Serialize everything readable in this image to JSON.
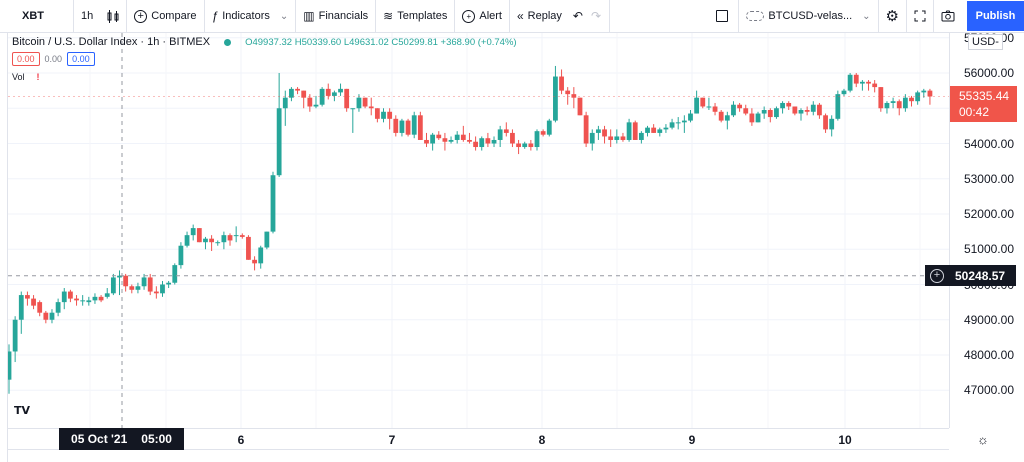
{
  "toolbar": {
    "symbol": "XBT",
    "interval": "1h",
    "chart_type_icon": "candles-icon",
    "compare": "Compare",
    "indicators": "Indicators",
    "financials": "Financials",
    "templates": "Templates",
    "alert": "Alert",
    "replay": "Replay",
    "layout_name": "BTCUSD-velas...",
    "publish": "Publish",
    "icons": {
      "compare": "⊕",
      "indicators": "ƒ",
      "chevron": "⌄",
      "financials": "▥",
      "templates": "≋",
      "alert": "⏰",
      "replay": "«",
      "undo": "↶",
      "redo": "↷",
      "layout_square": "☐",
      "cloud": "☁",
      "settings": "⚙",
      "fullscreen": "⛶",
      "camera": "📷"
    }
  },
  "legend": {
    "title": "Bitcoin / U.S. Dollar Index · 1h · BITMEX",
    "ohlc": "O49937.32 H50339.60 L49631.02 C50299.81 +368.90 (+0.74%)",
    "inputs": [
      "0.00",
      "0.00",
      "0.00"
    ],
    "vol_label": "Vol",
    "vol_warning": "!"
  },
  "price_scale": {
    "currency": "USD",
    "currency_label": "USD-",
    "labels": [
      "57000.00",
      "56000.00",
      "55000.00",
      "54000.00",
      "53000.00",
      "52000.00",
      "51000.00",
      "50000.00",
      "49000.00",
      "48000.00",
      "47000.00"
    ],
    "last_price": "55335.44",
    "countdown": "00:42",
    "crosshair_price": "50248.57"
  },
  "time_scale": {
    "crosshair_label_date": "05 Oct '21",
    "crosshair_label_time": "05:00",
    "labels": [
      "6",
      "7",
      "8",
      "9",
      "10"
    ]
  },
  "colors": {
    "up": "#26a69a",
    "down": "#ef5350",
    "accent": "#2962ff",
    "last_price_bg": "#f0554a",
    "crosshair_bg": "#131722"
  },
  "chart_data": {
    "type": "candlestick",
    "title": "Bitcoin / U.S. Dollar Index · 1h · BITMEX",
    "xlabel": "",
    "ylabel": "USD",
    "x_ticks": [
      "05 Oct '21 05:00",
      "6",
      "7",
      "8",
      "9",
      "10"
    ],
    "ylim": [
      46300,
      57100
    ],
    "grid": true,
    "last_price": 55335.44,
    "crosshair": {
      "time": "05 Oct '21 05:00",
      "price": 50248.57
    },
    "candles": [
      [
        47300,
        48300,
        46900,
        48100
      ],
      [
        48100,
        49100,
        47800,
        49000
      ],
      [
        49000,
        49800,
        48600,
        49700
      ],
      [
        49700,
        49800,
        49400,
        49600
      ],
      [
        49600,
        49700,
        49300,
        49400
      ],
      [
        49500,
        49550,
        49100,
        49200
      ],
      [
        49200,
        49250,
        48900,
        49000
      ],
      [
        49000,
        49300,
        48900,
        49200
      ],
      [
        49200,
        49600,
        49100,
        49500
      ],
      [
        49500,
        49900,
        49300,
        49800
      ],
      [
        49800,
        49850,
        49500,
        49600
      ],
      [
        49600,
        49700,
        49400,
        49550
      ],
      [
        49550,
        49700,
        49400,
        49550
      ],
      [
        49500,
        49650,
        49400,
        49550
      ],
      [
        49550,
        49750,
        49450,
        49650
      ],
      [
        49650,
        49700,
        49500,
        49550
      ],
      [
        49650,
        49900,
        49600,
        49750
      ],
      [
        49750,
        50300,
        49700,
        50200
      ],
      [
        50200,
        50400,
        49700,
        50250
      ],
      [
        50250,
        50300,
        49800,
        49950
      ],
      [
        49950,
        50000,
        49750,
        49850
      ],
      [
        49850,
        50050,
        49750,
        49950
      ],
      [
        49950,
        50300,
        49850,
        50200
      ],
      [
        50200,
        50300,
        49700,
        49800
      ],
      [
        49800,
        49950,
        49600,
        49750
      ],
      [
        49750,
        50100,
        49650,
        50000
      ],
      [
        50000,
        50100,
        49900,
        50050
      ],
      [
        50050,
        50600,
        50000,
        50550
      ],
      [
        50550,
        51200,
        50450,
        51100
      ],
      [
        51100,
        51500,
        51050,
        51400
      ],
      [
        51400,
        51700,
        51250,
        51600
      ],
      [
        51600,
        51600,
        51200,
        51200
      ],
      [
        51200,
        51350,
        51000,
        51300
      ],
      [
        51300,
        51400,
        50950,
        51200
      ],
      [
        51200,
        51250,
        51100,
        51200
      ],
      [
        51200,
        51500,
        51000,
        51400
      ],
      [
        51400,
        51450,
        51100,
        51250
      ],
      [
        51400,
        51650,
        51200,
        51400
      ],
      [
        51400,
        51450,
        51300,
        51350
      ],
      [
        51350,
        51400,
        50700,
        50700
      ],
      [
        50700,
        50800,
        50400,
        50600
      ],
      [
        50600,
        51100,
        50450,
        51050
      ],
      [
        51050,
        51500,
        51000,
        51500
      ],
      [
        51500,
        53200,
        51450,
        53100
      ],
      [
        53100,
        56000,
        53050,
        55000
      ],
      [
        55000,
        55500,
        54500,
        55300
      ],
      [
        55300,
        55600,
        55200,
        55550
      ],
      [
        55550,
        55600,
        55400,
        55500
      ],
      [
        55500,
        55500,
        55000,
        55300
      ],
      [
        55300,
        55400,
        54900,
        55050
      ],
      [
        55050,
        55350,
        55000,
        55100
      ],
      [
        55100,
        55600,
        55050,
        55550
      ],
      [
        55550,
        55700,
        55250,
        55350
      ],
      [
        55350,
        55500,
        55200,
        55450
      ],
      [
        55450,
        55700,
        55350,
        55550
      ],
      [
        55550,
        55550,
        54900,
        55000
      ],
      [
        55000,
        55000,
        54300,
        55000
      ],
      [
        55000,
        55400,
        54900,
        55300
      ],
      [
        55300,
        55300,
        55000,
        55050
      ],
      [
        55050,
        55300,
        54800,
        55000
      ],
      [
        55000,
        55000,
        54600,
        54700
      ],
      [
        54700,
        55000,
        54600,
        54900
      ],
      [
        54900,
        55000,
        54400,
        54700
      ],
      [
        54700,
        54800,
        54200,
        54300
      ],
      [
        54300,
        54700,
        54200,
        54650
      ],
      [
        54650,
        54700,
        54200,
        54250
      ],
      [
        54250,
        54900,
        54150,
        54800
      ],
      [
        54800,
        54900,
        54100,
        54100
      ],
      [
        54100,
        54300,
        53900,
        54000
      ],
      [
        54000,
        54300,
        53800,
        54250
      ],
      [
        54250,
        54350,
        54100,
        54150
      ],
      [
        54150,
        54300,
        53800,
        54050
      ],
      [
        54050,
        54200,
        54000,
        54100
      ],
      [
        54100,
        54350,
        54000,
        54250
      ],
      [
        54250,
        54500,
        54050,
        54100
      ],
      [
        54100,
        54300,
        54000,
        54050
      ],
      [
        54050,
        54200,
        53800,
        53900
      ],
      [
        53900,
        54200,
        53800,
        54150
      ],
      [
        54150,
        54300,
        53900,
        54000
      ],
      [
        54000,
        54200,
        53900,
        54100
      ],
      [
        54100,
        54500,
        53900,
        54400
      ],
      [
        54400,
        54600,
        54200,
        54300
      ],
      [
        54300,
        54400,
        53900,
        54000
      ],
      [
        54000,
        54100,
        53700,
        53900
      ],
      [
        53900,
        54050,
        53850,
        54000
      ],
      [
        54000,
        54100,
        53800,
        53900
      ],
      [
        53900,
        54400,
        53800,
        54350
      ],
      [
        54350,
        54400,
        54200,
        54250
      ],
      [
        54250,
        54700,
        54200,
        54650
      ],
      [
        54650,
        56200,
        54600,
        55900
      ],
      [
        55900,
        56100,
        55400,
        55500
      ],
      [
        55500,
        55600,
        55100,
        55400
      ],
      [
        55400,
        55600,
        55000,
        55300
      ],
      [
        55300,
        55300,
        54800,
        54800
      ],
      [
        54800,
        54900,
        53900,
        54000
      ],
      [
        54000,
        54400,
        53800,
        54300
      ],
      [
        54300,
        54500,
        54100,
        54400
      ],
      [
        54400,
        54500,
        54000,
        54200
      ],
      [
        54200,
        54400,
        53900,
        54100
      ],
      [
        54100,
        54400,
        54000,
        54200
      ],
      [
        54200,
        54300,
        54050,
        54100
      ],
      [
        54100,
        54700,
        54050,
        54600
      ],
      [
        54600,
        54650,
        54100,
        54100
      ],
      [
        54100,
        54350,
        54000,
        54300
      ],
      [
        54300,
        54500,
        54200,
        54450
      ],
      [
        54450,
        54550,
        54300,
        54300
      ],
      [
        54300,
        54450,
        54200,
        54400
      ],
      [
        54400,
        54550,
        54300,
        54450
      ],
      [
        54450,
        54700,
        54400,
        54600
      ],
      [
        54600,
        54750,
        54400,
        54600
      ],
      [
        54600,
        54800,
        54300,
        54650
      ],
      [
        54650,
        54950,
        54600,
        54850
      ],
      [
        54850,
        55500,
        54850,
        55300
      ],
      [
        55300,
        55300,
        55000,
        55050
      ],
      [
        55050,
        55300,
        54950,
        55050
      ],
      [
        55050,
        55150,
        54800,
        54900
      ],
      [
        54900,
        54950,
        54600,
        54650
      ],
      [
        54650,
        54900,
        54400,
        54800
      ],
      [
        54800,
        55200,
        54750,
        55100
      ],
      [
        55100,
        55150,
        54900,
        55000
      ],
      [
        55000,
        55100,
        54800,
        54850
      ],
      [
        54850,
        55000,
        54500,
        54600
      ],
      [
        54600,
        54900,
        54600,
        54850
      ],
      [
        54850,
        55050,
        54700,
        54950
      ],
      [
        54950,
        55000,
        54600,
        54750
      ],
      [
        54750,
        55050,
        54700,
        55000
      ],
      [
        55000,
        55200,
        54850,
        55150
      ],
      [
        55150,
        55200,
        54950,
        55050
      ],
      [
        55050,
        55050,
        54800,
        54850
      ],
      [
        54850,
        55000,
        54650,
        54950
      ],
      [
        54950,
        55050,
        54800,
        54900
      ],
      [
        54900,
        55200,
        54800,
        55100
      ],
      [
        55100,
        55150,
        54700,
        54800
      ],
      [
        54800,
        54850,
        54300,
        54400
      ],
      [
        54400,
        54800,
        54200,
        54700
      ],
      [
        54700,
        55500,
        54650,
        55400
      ],
      [
        55400,
        55550,
        55350,
        55500
      ],
      [
        55500,
        56000,
        55450,
        55950
      ],
      [
        55950,
        56000,
        55600,
        55700
      ],
      [
        55700,
        55800,
        55500,
        55750
      ],
      [
        55750,
        55800,
        55500,
        55700
      ],
      [
        55700,
        55800,
        55450,
        55600
      ],
      [
        55600,
        55600,
        54900,
        55000
      ],
      [
        55000,
        55200,
        54850,
        55150
      ],
      [
        55150,
        55300,
        55000,
        55200
      ],
      [
        55200,
        55250,
        54800,
        55000
      ],
      [
        55000,
        55400,
        54900,
        55300
      ],
      [
        55300,
        55350,
        55050,
        55200
      ],
      [
        55200,
        55500,
        55100,
        55450
      ],
      [
        55450,
        55550,
        55300,
        55500
      ],
      [
        55500,
        55550,
        55100,
        55335
      ]
    ]
  }
}
